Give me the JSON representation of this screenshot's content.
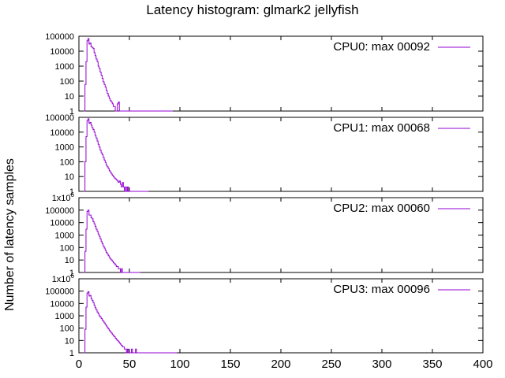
{
  "chart_data": {
    "type": "line",
    "title": "Latency histogram:  glmark2 jellyfish",
    "ylabel": "Number of latency samples",
    "xlabel": "",
    "xlim": [
      0,
      400
    ],
    "x_ticks": [
      "0",
      "50",
      "100",
      "150",
      "200",
      "250",
      "300",
      "350",
      "400"
    ],
    "y_scale": "log",
    "grid": false,
    "legend_position": "top-right",
    "series_color": "#9400d3",
    "panels": [
      {
        "name": "CPU0: max 00092",
        "ylim": [
          1,
          100000
        ],
        "y_ticks": [
          "1",
          "10",
          "100",
          "1000",
          "10000",
          "100000"
        ],
        "points": [
          [
            5,
            1
          ],
          [
            6,
            60
          ],
          [
            7,
            2000
          ],
          [
            8,
            50000
          ],
          [
            9,
            70000
          ],
          [
            10,
            30000
          ],
          [
            11,
            35000
          ],
          [
            12,
            20000
          ],
          [
            13,
            18000
          ],
          [
            14,
            15000
          ],
          [
            15,
            8000
          ],
          [
            16,
            5000
          ],
          [
            17,
            3000
          ],
          [
            18,
            2000
          ],
          [
            19,
            1000
          ],
          [
            20,
            700
          ],
          [
            21,
            400
          ],
          [
            22,
            250
          ],
          [
            23,
            150
          ],
          [
            24,
            90
          ],
          [
            25,
            60
          ],
          [
            26,
            40
          ],
          [
            27,
            25
          ],
          [
            28,
            15
          ],
          [
            29,
            10
          ],
          [
            30,
            7
          ],
          [
            31,
            5
          ],
          [
            32,
            4
          ],
          [
            33,
            3
          ],
          [
            34,
            2
          ],
          [
            35,
            2
          ],
          [
            36,
            1
          ],
          [
            37,
            1
          ],
          [
            38,
            3
          ],
          [
            39,
            4
          ],
          [
            40,
            1
          ],
          [
            43,
            1
          ],
          [
            48,
            1
          ],
          [
            55,
            1
          ],
          [
            60,
            1
          ],
          [
            92,
            1
          ]
        ]
      },
      {
        "name": "CPU1: max 00068",
        "ylim": [
          1,
          100000
        ],
        "y_ticks": [
          "1",
          "10",
          "100",
          "1000",
          "10000",
          "100000"
        ],
        "points": [
          [
            5,
            1
          ],
          [
            6,
            100
          ],
          [
            7,
            5000
          ],
          [
            8,
            60000
          ],
          [
            9,
            80000
          ],
          [
            10,
            40000
          ],
          [
            11,
            45000
          ],
          [
            12,
            30000
          ],
          [
            13,
            20000
          ],
          [
            14,
            15000
          ],
          [
            15,
            10000
          ],
          [
            16,
            6000
          ],
          [
            17,
            4000
          ],
          [
            18,
            2500
          ],
          [
            19,
            1500
          ],
          [
            20,
            1000
          ],
          [
            21,
            600
          ],
          [
            22,
            400
          ],
          [
            23,
            300
          ],
          [
            24,
            200
          ],
          [
            25,
            130
          ],
          [
            26,
            90
          ],
          [
            27,
            60
          ],
          [
            28,
            45
          ],
          [
            29,
            35
          ],
          [
            30,
            25
          ],
          [
            31,
            20
          ],
          [
            32,
            15
          ],
          [
            33,
            12
          ],
          [
            34,
            10
          ],
          [
            35,
            8
          ],
          [
            36,
            7
          ],
          [
            37,
            6
          ],
          [
            38,
            5
          ],
          [
            39,
            4
          ],
          [
            40,
            5
          ],
          [
            41,
            3
          ],
          [
            42,
            2
          ],
          [
            43,
            4
          ],
          [
            44,
            2
          ],
          [
            45,
            1
          ],
          [
            46,
            2
          ],
          [
            47,
            1
          ],
          [
            48,
            2
          ],
          [
            50,
            1
          ],
          [
            55,
            1
          ],
          [
            60,
            1
          ],
          [
            62,
            1
          ],
          [
            65,
            1
          ],
          [
            68,
            1
          ]
        ]
      },
      {
        "name": "CPU2: max 00060",
        "ylim": [
          1,
          1000000
        ],
        "y_ticks": [
          "1",
          "10",
          "100",
          "1000",
          "10000",
          "100000",
          "1x10^6"
        ],
        "points": [
          [
            5,
            1
          ],
          [
            6,
            50
          ],
          [
            7,
            3000
          ],
          [
            8,
            80000
          ],
          [
            9,
            100000
          ],
          [
            10,
            40000
          ],
          [
            11,
            40000
          ],
          [
            12,
            25000
          ],
          [
            13,
            20000
          ],
          [
            14,
            12000
          ],
          [
            15,
            8000
          ],
          [
            16,
            5000
          ],
          [
            17,
            3000
          ],
          [
            18,
            2000
          ],
          [
            19,
            1200
          ],
          [
            20,
            800
          ],
          [
            21,
            500
          ],
          [
            22,
            300
          ],
          [
            23,
            200
          ],
          [
            24,
            130
          ],
          [
            25,
            90
          ],
          [
            26,
            60
          ],
          [
            27,
            40
          ],
          [
            28,
            30
          ],
          [
            29,
            22
          ],
          [
            30,
            16
          ],
          [
            31,
            12
          ],
          [
            32,
            10
          ],
          [
            33,
            8
          ],
          [
            34,
            6
          ],
          [
            35,
            5
          ],
          [
            36,
            4
          ],
          [
            37,
            3
          ],
          [
            38,
            3
          ],
          [
            39,
            2
          ],
          [
            40,
            2
          ],
          [
            41,
            1
          ],
          [
            42,
            2
          ],
          [
            43,
            1
          ],
          [
            45,
            1
          ],
          [
            60,
            1
          ]
        ]
      },
      {
        "name": "CPU3: max 00096",
        "ylim": [
          1,
          1000000
        ],
        "y_ticks": [
          "1",
          "10",
          "100",
          "1000",
          "10000",
          "100000",
          "1x10^6"
        ],
        "points": [
          [
            5,
            1
          ],
          [
            6,
            80
          ],
          [
            7,
            5000
          ],
          [
            8,
            70000
          ],
          [
            9,
            90000
          ],
          [
            10,
            40000
          ],
          [
            11,
            45000
          ],
          [
            12,
            25000
          ],
          [
            13,
            18000
          ],
          [
            14,
            12000
          ],
          [
            15,
            7000
          ],
          [
            16,
            4500
          ],
          [
            17,
            3000
          ],
          [
            18,
            2000
          ],
          [
            19,
            1500
          ],
          [
            20,
            1000
          ],
          [
            21,
            800
          ],
          [
            22,
            600
          ],
          [
            23,
            450
          ],
          [
            24,
            350
          ],
          [
            25,
            260
          ],
          [
            26,
            200
          ],
          [
            27,
            150
          ],
          [
            28,
            110
          ],
          [
            29,
            85
          ],
          [
            30,
            65
          ],
          [
            31,
            50
          ],
          [
            32,
            40
          ],
          [
            33,
            30
          ],
          [
            34,
            25
          ],
          [
            35,
            20
          ],
          [
            36,
            15
          ],
          [
            37,
            12
          ],
          [
            38,
            10
          ],
          [
            39,
            8
          ],
          [
            40,
            6
          ],
          [
            41,
            5
          ],
          [
            42,
            4
          ],
          [
            43,
            3
          ],
          [
            44,
            3
          ],
          [
            45,
            2
          ],
          [
            46,
            2
          ],
          [
            47,
            1
          ],
          [
            48,
            2
          ],
          [
            49,
            1
          ],
          [
            50,
            1
          ],
          [
            52,
            2
          ],
          [
            54,
            1
          ],
          [
            56,
            2
          ],
          [
            58,
            1
          ],
          [
            60,
            1
          ],
          [
            63,
            1
          ],
          [
            70,
            1
          ],
          [
            75,
            1
          ],
          [
            92,
            1
          ],
          [
            96,
            1
          ]
        ]
      }
    ]
  }
}
